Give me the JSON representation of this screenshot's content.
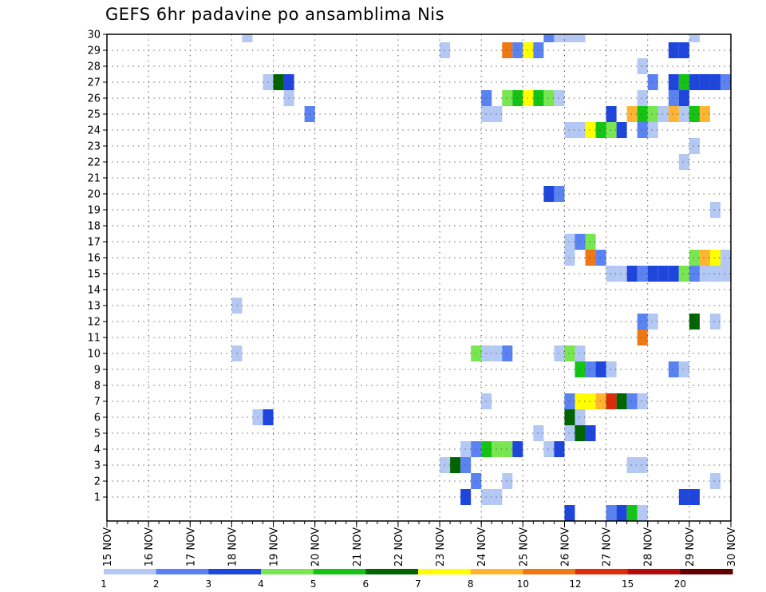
{
  "chart_data": {
    "type": "heatmap",
    "title": "GEFS 6hr padavine po ansamblima Nis",
    "xlabel": "",
    "ylabel": "",
    "x_tick_labels": [
      "15 NOV",
      "16 NOV",
      "17 NOV",
      "18 NOV",
      "19 NOV",
      "20 NOV",
      "21 NOV",
      "22 NOV",
      "23 NOV",
      "24 NOV",
      "25 NOV",
      "26 NOV",
      "27 NOV",
      "28 NOV",
      "29 NOV",
      "30 NOV"
    ],
    "xlim": [
      0,
      60
    ],
    "x_units": "6-hour steps from 15 NOV 00Z",
    "y_tick_labels": [
      "1",
      "2",
      "3",
      "4",
      "5",
      "6",
      "7",
      "8",
      "9",
      "10",
      "11",
      "12",
      "13",
      "14",
      "15",
      "16",
      "17",
      "18",
      "19",
      "20",
      "21",
      "22",
      "23",
      "24",
      "25",
      "26",
      "27",
      "28",
      "29",
      "30"
    ],
    "ylim": [
      0,
      30
    ],
    "grid": true,
    "colorbar": {
      "placement": "bottom",
      "labels": [
        "1",
        "2",
        "3",
        "4",
        "5",
        "6",
        "7",
        "8",
        "10",
        "12",
        "15",
        "20"
      ],
      "colors": [
        "#b4c8f4",
        "#5a82f0",
        "#1e46dc",
        "#78e650",
        "#14c314",
        "#006400",
        "#ffff00",
        "#ffb432",
        "#f07814",
        "#dc2d0a",
        "#b40a0a",
        "#640000"
      ]
    },
    "cells": [
      {
        "t": 34,
        "m": 1,
        "l": 3
      },
      {
        "t": 36,
        "m": 1,
        "l": 1
      },
      {
        "t": 37,
        "m": 1,
        "l": 1
      },
      {
        "t": 55,
        "m": 1,
        "l": 3
      },
      {
        "t": 56,
        "m": 1,
        "l": 3
      },
      {
        "t": 35,
        "m": 2,
        "l": 2
      },
      {
        "t": 38,
        "m": 2,
        "l": 1
      },
      {
        "t": 58,
        "m": 2,
        "l": 1
      },
      {
        "t": 32,
        "m": 3,
        "l": 1
      },
      {
        "t": 33,
        "m": 3,
        "l": 6
      },
      {
        "t": 34,
        "m": 3,
        "l": 2
      },
      {
        "t": 50,
        "m": 3,
        "l": 1
      },
      {
        "t": 51,
        "m": 3,
        "l": 1
      },
      {
        "t": 34,
        "m": 4,
        "l": 1
      },
      {
        "t": 35,
        "m": 4,
        "l": 2
      },
      {
        "t": 36,
        "m": 4,
        "l": 5
      },
      {
        "t": 37,
        "m": 4,
        "l": 4
      },
      {
        "t": 38,
        "m": 4,
        "l": 4
      },
      {
        "t": 39,
        "m": 4,
        "l": 3
      },
      {
        "t": 42,
        "m": 4,
        "l": 1
      },
      {
        "t": 43,
        "m": 4,
        "l": 3
      },
      {
        "t": 41,
        "m": 5,
        "l": 1
      },
      {
        "t": 44,
        "m": 5,
        "l": 1
      },
      {
        "t": 45,
        "m": 5,
        "l": 6
      },
      {
        "t": 46,
        "m": 5,
        "l": 3
      },
      {
        "t": 14,
        "m": 6,
        "l": 1
      },
      {
        "t": 15,
        "m": 6,
        "l": 3
      },
      {
        "t": 44,
        "m": 6,
        "l": 6
      },
      {
        "t": 45,
        "m": 6,
        "l": 1
      },
      {
        "t": 36,
        "m": 7,
        "l": 1
      },
      {
        "t": 44,
        "m": 7,
        "l": 2
      },
      {
        "t": 45,
        "m": 7,
        "l": 7
      },
      {
        "t": 46,
        "m": 7,
        "l": 7
      },
      {
        "t": 47,
        "m": 7,
        "l": 8
      },
      {
        "t": 48,
        "m": 7,
        "l": 10
      },
      {
        "t": 49,
        "m": 7,
        "l": 6
      },
      {
        "t": 50,
        "m": 7,
        "l": 2
      },
      {
        "t": 51,
        "m": 7,
        "l": 1
      },
      {
        "t": 45,
        "m": 9,
        "l": 5
      },
      {
        "t": 46,
        "m": 9,
        "l": 2
      },
      {
        "t": 47,
        "m": 9,
        "l": 3
      },
      {
        "t": 48,
        "m": 9,
        "l": 1
      },
      {
        "t": 54,
        "m": 9,
        "l": 2
      },
      {
        "t": 55,
        "m": 9,
        "l": 1
      },
      {
        "t": 12,
        "m": 10,
        "l": 1
      },
      {
        "t": 35,
        "m": 10,
        "l": 4
      },
      {
        "t": 36,
        "m": 10,
        "l": 1
      },
      {
        "t": 37,
        "m": 10,
        "l": 1
      },
      {
        "t": 38,
        "m": 10,
        "l": 2
      },
      {
        "t": 43,
        "m": 10,
        "l": 1
      },
      {
        "t": 44,
        "m": 10,
        "l": 4
      },
      {
        "t": 45,
        "m": 10,
        "l": 1
      },
      {
        "t": 51,
        "m": 11,
        "l": 9
      },
      {
        "t": 51,
        "m": 12,
        "l": 2
      },
      {
        "t": 52,
        "m": 12,
        "l": 1
      },
      {
        "t": 56,
        "m": 12,
        "l": 6
      },
      {
        "t": 58,
        "m": 12,
        "l": 1
      },
      {
        "t": 12,
        "m": 13,
        "l": 1
      },
      {
        "t": 48,
        "m": 15,
        "l": 1
      },
      {
        "t": 49,
        "m": 15,
        "l": 1
      },
      {
        "t": 50,
        "m": 15,
        "l": 3
      },
      {
        "t": 51,
        "m": 15,
        "l": 2
      },
      {
        "t": 52,
        "m": 15,
        "l": 3
      },
      {
        "t": 53,
        "m": 15,
        "l": 3
      },
      {
        "t": 54,
        "m": 15,
        "l": 3
      },
      {
        "t": 55,
        "m": 15,
        "l": 4
      },
      {
        "t": 56,
        "m": 15,
        "l": 2
      },
      {
        "t": 57,
        "m": 15,
        "l": 1
      },
      {
        "t": 58,
        "m": 15,
        "l": 1
      },
      {
        "t": 59,
        "m": 15,
        "l": 1
      },
      {
        "t": 44,
        "m": 16,
        "l": 1
      },
      {
        "t": 46,
        "m": 16,
        "l": 9
      },
      {
        "t": 47,
        "m": 16,
        "l": 2
      },
      {
        "t": 56,
        "m": 16,
        "l": 4
      },
      {
        "t": 57,
        "m": 16,
        "l": 8
      },
      {
        "t": 58,
        "m": 16,
        "l": 7
      },
      {
        "t": 59,
        "m": 16,
        "l": 1
      },
      {
        "t": 44,
        "m": 17,
        "l": 1
      },
      {
        "t": 45,
        "m": 17,
        "l": 2
      },
      {
        "t": 46,
        "m": 17,
        "l": 4
      },
      {
        "t": 58,
        "m": 19,
        "l": 1
      },
      {
        "t": 42,
        "m": 20,
        "l": 3
      },
      {
        "t": 43,
        "m": 20,
        "l": 2
      },
      {
        "t": 55,
        "m": 22,
        "l": 1
      },
      {
        "t": 56,
        "m": 23,
        "l": 1
      },
      {
        "t": 44,
        "m": 24,
        "l": 1
      },
      {
        "t": 45,
        "m": 24,
        "l": 1
      },
      {
        "t": 46,
        "m": 24,
        "l": 7
      },
      {
        "t": 47,
        "m": 24,
        "l": 5
      },
      {
        "t": 48,
        "m": 24,
        "l": 4
      },
      {
        "t": 49,
        "m": 24,
        "l": 3
      },
      {
        "t": 51,
        "m": 24,
        "l": 2
      },
      {
        "t": 52,
        "m": 24,
        "l": 1
      },
      {
        "t": 19,
        "m": 25,
        "l": 2
      },
      {
        "t": 36,
        "m": 25,
        "l": 1
      },
      {
        "t": 37,
        "m": 25,
        "l": 1
      },
      {
        "t": 48,
        "m": 25,
        "l": 3
      },
      {
        "t": 50,
        "m": 25,
        "l": 8
      },
      {
        "t": 51,
        "m": 25,
        "l": 5
      },
      {
        "t": 52,
        "m": 25,
        "l": 4
      },
      {
        "t": 53,
        "m": 25,
        "l": 1
      },
      {
        "t": 54,
        "m": 25,
        "l": 8
      },
      {
        "t": 55,
        "m": 25,
        "l": 1
      },
      {
        "t": 56,
        "m": 25,
        "l": 5
      },
      {
        "t": 57,
        "m": 25,
        "l": 8
      },
      {
        "t": 17,
        "m": 26,
        "l": 1
      },
      {
        "t": 36,
        "m": 26,
        "l": 2
      },
      {
        "t": 38,
        "m": 26,
        "l": 4
      },
      {
        "t": 39,
        "m": 26,
        "l": 5
      },
      {
        "t": 40,
        "m": 26,
        "l": 7
      },
      {
        "t": 41,
        "m": 26,
        "l": 5
      },
      {
        "t": 42,
        "m": 26,
        "l": 4
      },
      {
        "t": 43,
        "m": 26,
        "l": 1
      },
      {
        "t": 51,
        "m": 26,
        "l": 1
      },
      {
        "t": 54,
        "m": 26,
        "l": 2
      },
      {
        "t": 55,
        "m": 26,
        "l": 3
      },
      {
        "t": 15,
        "m": 27,
        "l": 1
      },
      {
        "t": 16,
        "m": 27,
        "l": 6
      },
      {
        "t": 17,
        "m": 27,
        "l": 3
      },
      {
        "t": 52,
        "m": 27,
        "l": 2
      },
      {
        "t": 54,
        "m": 27,
        "l": 3
      },
      {
        "t": 55,
        "m": 27,
        "l": 5
      },
      {
        "t": 56,
        "m": 27,
        "l": 3
      },
      {
        "t": 57,
        "m": 27,
        "l": 3
      },
      {
        "t": 58,
        "m": 27,
        "l": 3
      },
      {
        "t": 59,
        "m": 27,
        "l": 2
      },
      {
        "t": 51,
        "m": 28,
        "l": 1
      },
      {
        "t": 32,
        "m": 29,
        "l": 1
      },
      {
        "t": 38,
        "m": 29,
        "l": 9
      },
      {
        "t": 39,
        "m": 29,
        "l": 2
      },
      {
        "t": 40,
        "m": 29,
        "l": 7
      },
      {
        "t": 41,
        "m": 29,
        "l": 2
      },
      {
        "t": 54,
        "m": 29,
        "l": 3
      },
      {
        "t": 55,
        "m": 29,
        "l": 3
      },
      {
        "t": 13,
        "m": 30,
        "l": 1
      },
      {
        "t": 42,
        "m": 30,
        "l": 2
      },
      {
        "t": 43,
        "m": 30,
        "l": 1
      },
      {
        "t": 44,
        "m": 30,
        "l": 1
      },
      {
        "t": 45,
        "m": 30,
        "l": 1
      },
      {
        "t": 56,
        "m": 30,
        "l": 1
      },
      {
        "t": 44,
        "m": 0,
        "l": 3
      },
      {
        "t": 48,
        "m": 0,
        "l": 2
      },
      {
        "t": 49,
        "m": 0,
        "l": 3
      },
      {
        "t": 50,
        "m": 0,
        "l": 5
      },
      {
        "t": 51,
        "m": 0,
        "l": 1
      }
    ]
  }
}
